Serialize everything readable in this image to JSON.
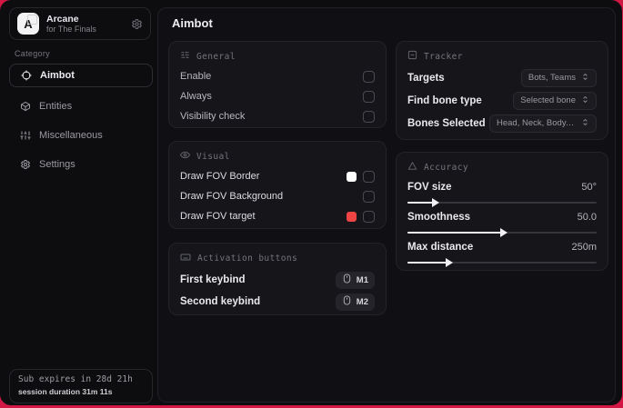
{
  "theme": {
    "edge_red": "#d31745",
    "window_bg": "#0d0d10",
    "card_bg": "#15151a"
  },
  "sidebar": {
    "brand": {
      "initial": "A",
      "name": "Arcane",
      "subtitle": "for The Finals"
    },
    "category_label": "Category",
    "items": [
      {
        "label": "Aimbot",
        "active": true
      },
      {
        "label": "Entities",
        "active": false
      },
      {
        "label": "Miscellaneous",
        "active": false
      },
      {
        "label": "Settings",
        "active": false
      }
    ],
    "footer": {
      "line1": "Sub expires in 28d 21h",
      "line2": "session duration 31m 11s"
    }
  },
  "main": {
    "title": "Aimbot",
    "general": {
      "title": "General",
      "rows": [
        {
          "label": "Enable",
          "checked": false
        },
        {
          "label": "Always",
          "checked": false
        },
        {
          "label": "Visibility check",
          "checked": false
        }
      ]
    },
    "visual": {
      "title": "Visual",
      "rows": [
        {
          "label": "Draw FOV Border",
          "swatch": "#ffffff",
          "checked": false
        },
        {
          "label": "Draw FOV Background",
          "checked": false
        },
        {
          "label": "Draw FOV target",
          "swatch": "#ef4444",
          "checked": false
        }
      ]
    },
    "activation": {
      "title": "Activation buttons",
      "rows": [
        {
          "label": "First keybind",
          "key": "M1"
        },
        {
          "label": "Second keybind",
          "key": "M2"
        }
      ]
    },
    "tracker": {
      "title": "Tracker",
      "rows": [
        {
          "label": "Targets",
          "value": "Bots, Teams"
        },
        {
          "label": "Find bone type",
          "value": "Selected bone"
        },
        {
          "label": "Bones Selected",
          "value": "Head, Neck, Body, Pe..."
        }
      ]
    },
    "accuracy": {
      "title": "Accuracy",
      "rows": [
        {
          "label": "FOV size",
          "value": "50°",
          "percent": 14
        },
        {
          "label": "Smoothness",
          "value": "50.0",
          "percent": 50
        },
        {
          "label": "Max distance",
          "value": "250m",
          "percent": 21
        }
      ]
    }
  }
}
